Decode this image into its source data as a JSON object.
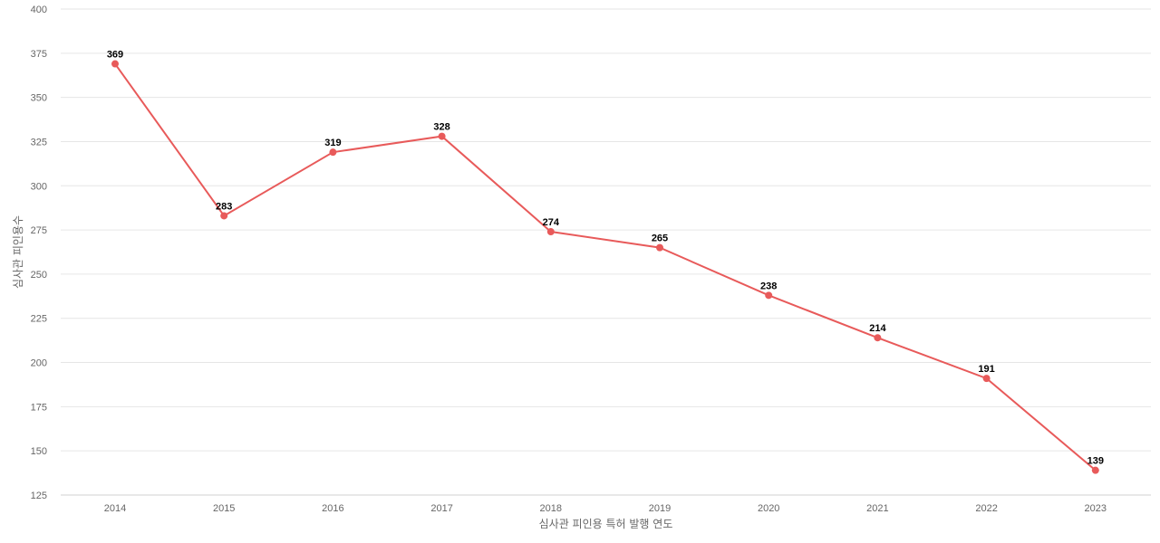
{
  "chart_data": {
    "type": "line",
    "title": "",
    "xlabel": "심사관 피인용 특허 발행 연도",
    "ylabel": "심사관 피인용수",
    "categories": [
      "2014",
      "2015",
      "2016",
      "2017",
      "2018",
      "2019",
      "2020",
      "2021",
      "2022",
      "2023"
    ],
    "series": [
      {
        "values": [
          369,
          283,
          319,
          328,
          274,
          265,
          238,
          214,
          191,
          139
        ],
        "color": "#e85a5a"
      }
    ],
    "ylim": [
      125,
      400
    ],
    "yticks": [
      125,
      150,
      175,
      200,
      225,
      250,
      275,
      300,
      325,
      350,
      375,
      400
    ],
    "grid": true,
    "data_labels": true
  }
}
